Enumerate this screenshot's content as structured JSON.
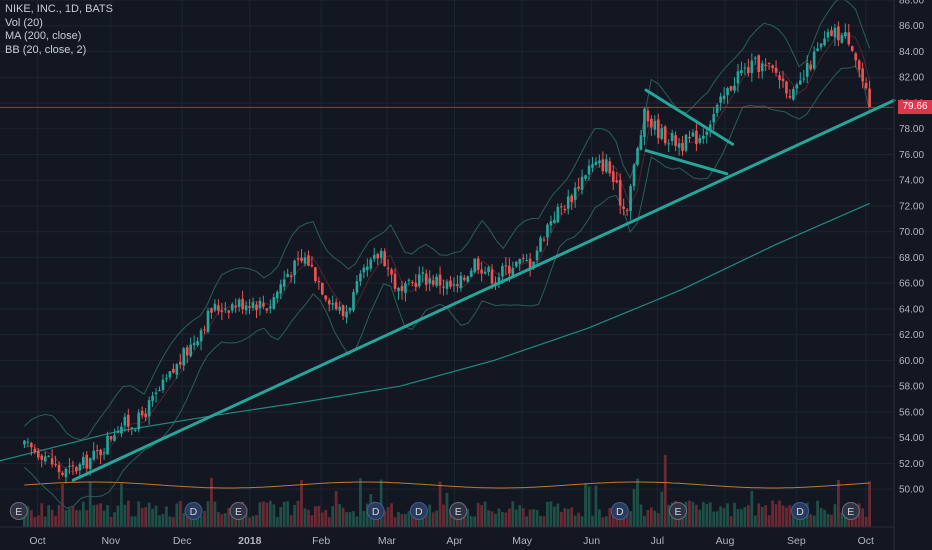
{
  "legend": {
    "symbol": "NIKE, INC., 1D, BATS",
    "vol": "Vol (20)",
    "ma": "MA (200, close)",
    "bb": "BB (20, close, 2)"
  },
  "last_price_label": "79.66",
  "colors": {
    "background": "#131722",
    "grid": "#1f2433",
    "up": "#26a69a",
    "down": "#ef5350",
    "trend": "#26a69a",
    "bb": "#2a5f58",
    "ma": "#1f8a82",
    "vol_ma": "#c57a2b",
    "price_line": "#c9303f"
  },
  "chart_data": {
    "type": "candlestick",
    "title": "NIKE, INC., 1D, BATS",
    "indicators": [
      "Vol (20)",
      "MA (200, close)",
      "BB (20, close, 2)"
    ],
    "y_ticks": [
      50,
      52,
      54,
      56,
      58,
      60,
      62,
      64,
      66,
      68,
      70,
      72,
      74,
      76,
      78,
      80,
      82,
      84,
      86,
      88
    ],
    "ylim": [
      49,
      88
    ],
    "x_ticks": [
      {
        "label": "Oct",
        "x": 0.7
      },
      {
        "label": "Nov",
        "x": 4.6
      },
      {
        "label": "Dec",
        "x": 8.4
      },
      {
        "label": "2018",
        "x": 12.0
      },
      {
        "label": "Feb",
        "x": 15.8
      },
      {
        "label": "Mar",
        "x": 19.3
      },
      {
        "label": "Apr",
        "x": 22.9
      },
      {
        "label": "May",
        "x": 26.5
      },
      {
        "label": "Jun",
        "x": 30.2
      },
      {
        "label": "Jul",
        "x": 33.7
      },
      {
        "label": "Aug",
        "x": 37.3
      },
      {
        "label": "Sep",
        "x": 41.1
      },
      {
        "label": "Oct",
        "x": 44.8
      }
    ],
    "xlim": [
      -1.3,
      46.3
    ],
    "last_price": 79.66,
    "price_path": [
      [
        0.0,
        53.3
      ],
      [
        1.0,
        52.8
      ],
      [
        2.0,
        51.2
      ],
      [
        3.0,
        51.8
      ],
      [
        4.0,
        52.9
      ],
      [
        5.0,
        55.0
      ],
      [
        6.0,
        55.2
      ],
      [
        7.0,
        57.2
      ],
      [
        8.0,
        59.3
      ],
      [
        9.0,
        61.5
      ],
      [
        10.0,
        64.0
      ],
      [
        11.0,
        64.3
      ],
      [
        12.0,
        64.6
      ],
      [
        13.0,
        64.2
      ],
      [
        14.0,
        66.8
      ],
      [
        15.0,
        68.0
      ],
      [
        16.0,
        65.3
      ],
      [
        17.0,
        63.5
      ],
      [
        18.0,
        66.5
      ],
      [
        19.0,
        68.5
      ],
      [
        20.0,
        65.0
      ],
      [
        21.0,
        66.5
      ],
      [
        22.0,
        66.2
      ],
      [
        23.0,
        65.5
      ],
      [
        24.0,
        67.8
      ],
      [
        25.0,
        66.4
      ],
      [
        26.0,
        67.5
      ],
      [
        27.0,
        67.7
      ],
      [
        28.0,
        71.0
      ],
      [
        29.0,
        72.5
      ],
      [
        30.0,
        75.0
      ],
      [
        31.0,
        75.3
      ],
      [
        32.0,
        71.5
      ],
      [
        33.0,
        79.0
      ],
      [
        34.0,
        77.5
      ],
      [
        35.0,
        76.8
      ],
      [
        36.0,
        77.5
      ],
      [
        37.0,
        79.8
      ],
      [
        38.0,
        82.3
      ],
      [
        39.0,
        83.0
      ],
      [
        40.0,
        82.4
      ],
      [
        41.0,
        80.5
      ],
      [
        42.0,
        83.5
      ],
      [
        43.0,
        85.5
      ],
      [
        44.0,
        85.0
      ],
      [
        45.0,
        79.66
      ]
    ],
    "ma200": [
      [
        -1.3,
        52.2
      ],
      [
        5,
        54.5
      ],
      [
        10,
        55.7
      ],
      [
        15,
        56.8
      ],
      [
        20,
        58.0
      ],
      [
        25,
        60.0
      ],
      [
        30,
        62.5
      ],
      [
        35,
        65.5
      ],
      [
        40,
        69.0
      ],
      [
        45,
        72.2
      ]
    ],
    "trend_lines": [
      {
        "name": "main-support-trendline",
        "points": [
          [
            2.6,
            50.7
          ],
          [
            46.3,
            80.2
          ]
        ]
      },
      {
        "name": "pennant-upper-line",
        "points": [
          [
            33.1,
            81.0
          ],
          [
            37.7,
            76.8
          ]
        ]
      },
      {
        "name": "pennant-lower-line",
        "points": [
          [
            33.1,
            76.3
          ],
          [
            37.4,
            74.5
          ]
        ]
      }
    ],
    "earnings_markers": [
      {
        "type": "E",
        "x": -0.3
      },
      {
        "type": "D",
        "x": 9.0
      },
      {
        "type": "E",
        "x": 11.4
      },
      {
        "type": "D",
        "x": 18.7
      },
      {
        "type": "D",
        "x": 21.0
      },
      {
        "type": "E",
        "x": 23.1
      },
      {
        "type": "D",
        "x": 31.7
      },
      {
        "type": "E",
        "x": 34.8
      },
      {
        "type": "D",
        "x": 41.3
      },
      {
        "type": "E",
        "x": 44.0
      }
    ]
  }
}
